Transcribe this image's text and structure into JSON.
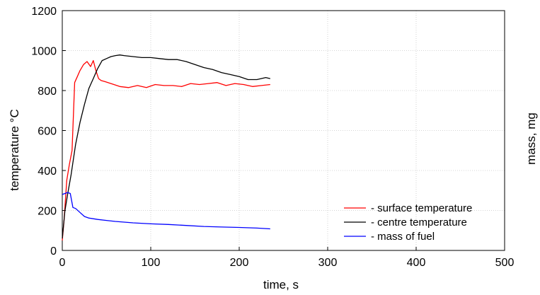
{
  "chart_data": {
    "type": "line",
    "xlabel": "time, s",
    "ylabel": "temperature °C",
    "ylabel_right": "mass, mg",
    "xlim": [
      0,
      500
    ],
    "ylim": [
      0,
      1200
    ],
    "xticks": [
      0,
      100,
      200,
      300,
      400,
      500
    ],
    "yticks": [
      0,
      200,
      400,
      600,
      800,
      1000,
      1200
    ],
    "grid": true,
    "legend_position": "bottom-right",
    "series": [
      {
        "name": "- surface temperature",
        "color": "#ff0000",
        "x": [
          0,
          2,
          5,
          8,
          11,
          14,
          17,
          20,
          24,
          28,
          32,
          35,
          38,
          41,
          44,
          48,
          55,
          65,
          75,
          85,
          95,
          105,
          115,
          125,
          135,
          145,
          155,
          165,
          175,
          185,
          195,
          205,
          215,
          225,
          235
        ],
        "y": [
          50,
          150,
          350,
          430,
          500,
          840,
          870,
          900,
          930,
          945,
          920,
          950,
          900,
          860,
          850,
          845,
          835,
          820,
          815,
          825,
          815,
          830,
          825,
          825,
          820,
          835,
          830,
          835,
          840,
          825,
          835,
          830,
          820,
          825,
          830
        ]
      },
      {
        "name": "- centre temperature",
        "color": "#000000",
        "x": [
          0,
          3,
          6,
          10,
          15,
          20,
          25,
          30,
          35,
          40,
          45,
          50,
          55,
          60,
          65,
          70,
          80,
          90,
          100,
          110,
          120,
          130,
          140,
          150,
          160,
          170,
          180,
          190,
          200,
          210,
          220,
          230,
          235
        ],
        "y": [
          60,
          200,
          280,
          380,
          530,
          640,
          730,
          810,
          860,
          910,
          950,
          960,
          970,
          975,
          978,
          975,
          970,
          965,
          965,
          960,
          955,
          955,
          945,
          930,
          915,
          905,
          890,
          880,
          870,
          855,
          855,
          865,
          860
        ]
      },
      {
        "name": "- mass of fuel",
        "color": "#0000ff",
        "x": [
          0,
          3,
          6,
          9,
          12,
          15,
          20,
          25,
          30,
          40,
          50,
          60,
          80,
          100,
          120,
          140,
          160,
          180,
          200,
          220,
          235
        ],
        "y": [
          280,
          285,
          290,
          285,
          215,
          210,
          190,
          170,
          162,
          155,
          150,
          145,
          138,
          133,
          130,
          125,
          120,
          117,
          115,
          112,
          108
        ]
      }
    ]
  }
}
